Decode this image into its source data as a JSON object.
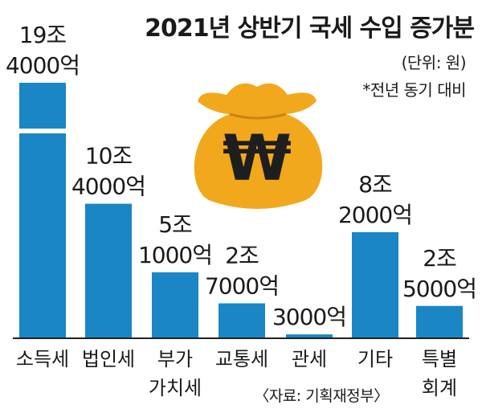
{
  "title": "2021년 상반기 국세 수입 증가분",
  "unit_note": "(단위: 원)",
  "comparison_note": "*전년 동기 대비",
  "source": "〈자료: 기획재정부〉",
  "icon": {
    "name": "money-bag-icon",
    "symbol": "₩",
    "bag_color": "#f2a81d",
    "symbol_color": "#1e1e1e"
  },
  "colors": {
    "bar": "#1a86c5",
    "baseline": "#222222"
  },
  "chart_data": {
    "type": "bar",
    "title": "2021년 상반기 국세 수입 증가분",
    "unit": "원",
    "categories": [
      [
        "소득세"
      ],
      [
        "법인세"
      ],
      [
        "부가",
        "가치세"
      ],
      [
        "교통세"
      ],
      [
        "관세"
      ],
      [
        "기타"
      ],
      [
        "특별",
        "회계"
      ]
    ],
    "values_trillion_won": [
      19.4,
      10.4,
      5.1,
      2.7,
      0.3,
      8.2,
      2.5
    ],
    "value_labels": [
      [
        "19조",
        "4000억"
      ],
      [
        "10조",
        "4000억"
      ],
      [
        "5조",
        "1000억"
      ],
      [
        "2조",
        "7000억"
      ],
      [
        "3000억"
      ],
      [
        "8조",
        "2000억"
      ],
      [
        "2조",
        "5000억"
      ]
    ],
    "axis_break_on_first_bar": true,
    "grid": false,
    "legend": "none"
  }
}
